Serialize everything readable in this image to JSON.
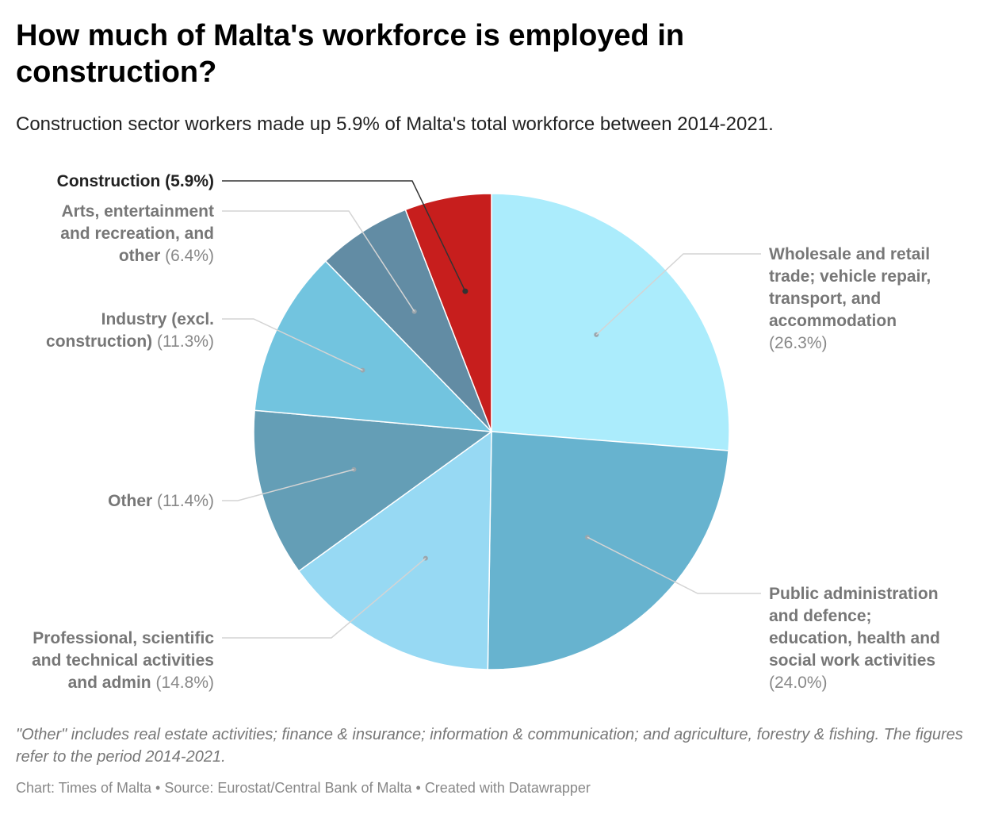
{
  "title": "How much of Malta's workforce is employed in construction?",
  "subtitle": "Construction sector workers made up 5.9% of Malta's total workforce between 2014-2021.",
  "notes": "\"Other\" includes real estate activities; finance & insurance; information & communication; and agriculture, forestry & fishing. The figures refer to the period 2014-2021.",
  "footer": "Chart: Times of Malta • Source: Eurostat/Central Bank of Malta • Created with Datawrapper",
  "chart_data": {
    "type": "pie",
    "slices": [
      {
        "label": "Wholesale and retail trade; vehicle repair, transport, and accommodation",
        "value_text": "(26.3%)",
        "value": 26.3,
        "color": "#abecfc",
        "label_lines": [
          "Wholesale and retail",
          "trade; vehicle repair,",
          "transport, and",
          "accommodation"
        ]
      },
      {
        "label": "Public administration and defence; education, health and social work activities",
        "value_text": "(24.0%)",
        "value": 24.0,
        "color": "#67b3cf",
        "label_lines": [
          "Public administration",
          "and defence;",
          "education, health and",
          "social work activities"
        ]
      },
      {
        "label": "Professional, scientific and technical activities and admin",
        "value_text": "(14.8%)",
        "value": 14.8,
        "color": "#97d9f3",
        "label_lines": [
          "Professional, scientific",
          "and technical activities",
          "and admin"
        ]
      },
      {
        "label": "Other",
        "value_text": "(11.4%)",
        "value": 11.4,
        "color": "#649eb6",
        "label_lines": [
          "Other"
        ]
      },
      {
        "label": "Industry (excl. construction)",
        "value_text": "(11.3%)",
        "value": 11.3,
        "color": "#72c4df",
        "label_lines": [
          "Industry (excl.",
          "construction)"
        ]
      },
      {
        "label": "Arts, entertainment and recreation, and other",
        "value_text": "(6.4%)",
        "value": 6.4,
        "color": "#628ca4",
        "label_lines": [
          "Arts, entertainment",
          "and recreation, and",
          "other"
        ]
      },
      {
        "label": "Construction",
        "value_text": "(5.9%)",
        "value": 5.9,
        "color": "#c71e1d",
        "label_lines": [
          "Construction"
        ],
        "highlight": true
      }
    ]
  }
}
